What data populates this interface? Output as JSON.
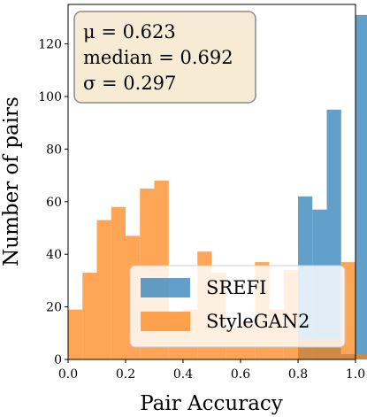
{
  "chart_data": {
    "type": "bar",
    "xlabel": "Pair Accuracy",
    "ylabel": "Number of pairs",
    "xlim": [
      0.0,
      1.0
    ],
    "ylim": [
      0,
      135
    ],
    "xticks": [
      "0.0",
      "0.2",
      "0.4",
      "0.6",
      "0.8",
      "1.0"
    ],
    "yticks": [
      "0",
      "20",
      "40",
      "60",
      "80",
      "100",
      "120"
    ],
    "bin_edges": [
      0.0,
      0.05,
      0.1,
      0.15,
      0.2,
      0.25,
      0.3,
      0.35,
      0.4,
      0.45,
      0.5,
      0.55,
      0.6,
      0.65,
      0.7,
      0.75,
      0.8,
      0.85,
      0.9,
      0.95,
      1.0
    ],
    "series": [
      {
        "name": "SREFI",
        "color": "#1f77b4",
        "values": [
          0,
          0,
          0,
          0,
          0,
          0,
          0,
          0,
          0,
          0,
          0,
          0,
          0,
          0,
          0,
          0,
          62,
          57,
          95,
          2,
          131
        ]
      },
      {
        "name": "StyleGAN2",
        "color": "#ff7f0e",
        "values": [
          19,
          33,
          53,
          58,
          47,
          65,
          68,
          18,
          19,
          41,
          33,
          12,
          14,
          37,
          19,
          34,
          8,
          8,
          8,
          37,
          2
        ]
      }
    ],
    "stats": {
      "mu": "μ = 0.623",
      "median": "median = 0.692",
      "sigma": "σ = 0.297"
    },
    "legend_placement": "lower-right",
    "stats_placement": "top-left",
    "grid": false
  }
}
